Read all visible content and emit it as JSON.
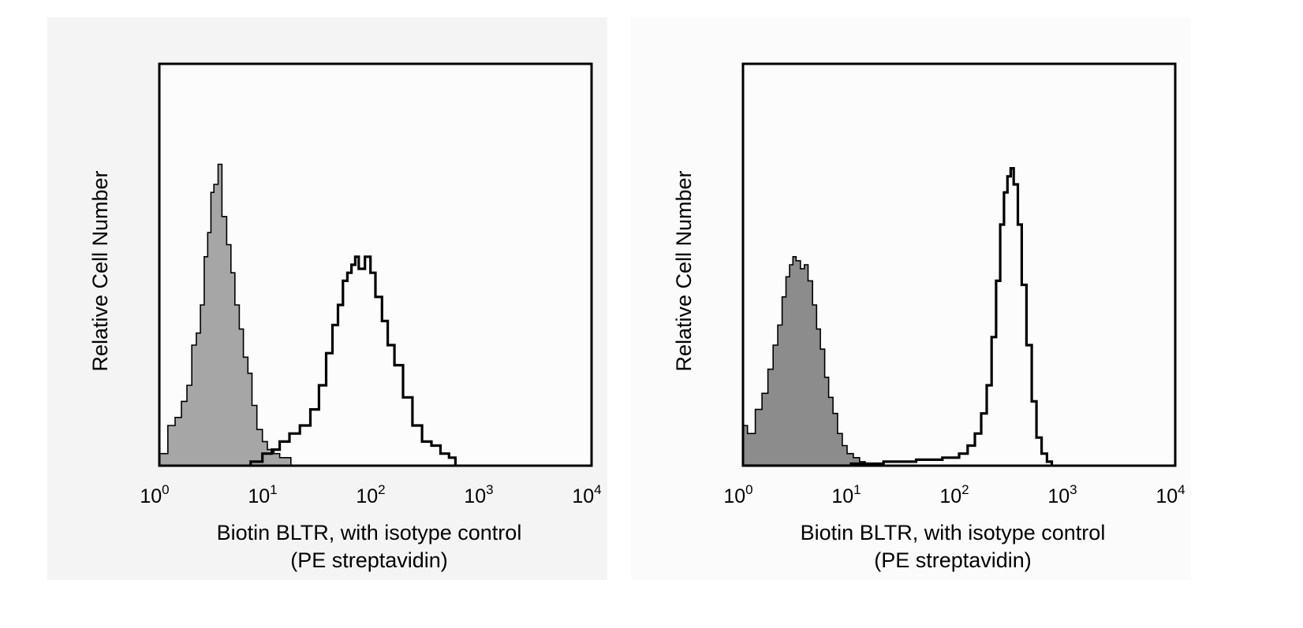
{
  "chart_data": [
    {
      "type": "area",
      "title": "",
      "xlabel": "Biotin BLTR, with isotype control",
      "xlabel_line2": "(PE streptavidin)",
      "ylabel": "Relative Cell Number",
      "x_scale": "log",
      "xlim": [
        1,
        10000
      ],
      "ylim": [
        0,
        1
      ],
      "x_ticks": [
        {
          "base": "10",
          "exp": "0"
        },
        {
          "base": "10",
          "exp": "1"
        },
        {
          "base": "10",
          "exp": "2"
        },
        {
          "base": "10",
          "exp": "3"
        },
        {
          "base": "10",
          "exp": "4"
        }
      ],
      "grid": false,
      "legend": "none",
      "series": [
        {
          "role": "isotype control",
          "style": "filled",
          "fill_color": "#a6a6a6",
          "x": [
            1.0,
            1.2,
            1.4,
            1.6,
            1.8,
            2.0,
            2.2,
            2.4,
            2.6,
            2.8,
            3.0,
            3.2,
            3.5,
            3.8,
            4.2,
            4.6,
            5.0,
            5.5,
            6.0,
            6.6,
            7.2,
            8.0,
            9.0,
            10.0,
            11.5,
            13.0,
            15.0,
            16.5
          ],
          "y": [
            0.03,
            0.1,
            0.12,
            0.16,
            0.2,
            0.3,
            0.33,
            0.4,
            0.52,
            0.58,
            0.68,
            0.7,
            0.75,
            0.62,
            0.55,
            0.48,
            0.4,
            0.34,
            0.27,
            0.23,
            0.15,
            0.09,
            0.06,
            0.04,
            0.03,
            0.02,
            0.02,
            0.0
          ]
        },
        {
          "role": "Biotin BLTR",
          "style": "outline",
          "line_color": "#000000",
          "x": [
            7.0,
            9.0,
            11.0,
            13.0,
            16.0,
            20.0,
            25.0,
            30.0,
            35.0,
            40.0,
            45.0,
            50.0,
            55.0,
            60.0,
            65.0,
            70.0,
            80.0,
            90.0,
            100.0,
            115.0,
            130.0,
            150.0,
            180.0,
            220.0,
            270.0,
            330.0,
            400.0,
            480.0,
            550.0
          ],
          "y": [
            0.01,
            0.03,
            0.04,
            0.06,
            0.08,
            0.1,
            0.14,
            0.2,
            0.28,
            0.35,
            0.4,
            0.46,
            0.48,
            0.5,
            0.52,
            0.49,
            0.52,
            0.48,
            0.42,
            0.36,
            0.3,
            0.25,
            0.17,
            0.1,
            0.06,
            0.05,
            0.03,
            0.02,
            0.0
          ]
        }
      ]
    },
    {
      "type": "area",
      "title": "",
      "xlabel": "Biotin BLTR, with isotype control",
      "xlabel_line2": "(PE streptavidin)",
      "ylabel": "Relative Cell Number",
      "x_scale": "log",
      "xlim": [
        1,
        10000
      ],
      "ylim": [
        0,
        1
      ],
      "x_ticks": [
        {
          "base": "10",
          "exp": "0"
        },
        {
          "base": "10",
          "exp": "1"
        },
        {
          "base": "10",
          "exp": "2"
        },
        {
          "base": "10",
          "exp": "3"
        },
        {
          "base": "10",
          "exp": "4"
        }
      ],
      "grid": false,
      "legend": "none",
      "series": [
        {
          "role": "isotype control",
          "style": "filled",
          "fill_color": "#8c8c8c",
          "x": [
            1.0,
            1.1,
            1.3,
            1.5,
            1.7,
            1.9,
            2.1,
            2.3,
            2.5,
            2.7,
            2.9,
            3.1,
            3.4,
            3.7,
            4.0,
            4.4,
            4.8,
            5.2,
            5.7,
            6.2,
            6.8,
            7.5,
            8.3,
            9.2,
            10.5,
            12.0,
            13.5
          ],
          "y": [
            0.1,
            0.08,
            0.14,
            0.18,
            0.24,
            0.3,
            0.35,
            0.42,
            0.47,
            0.5,
            0.52,
            0.51,
            0.49,
            0.5,
            0.46,
            0.4,
            0.34,
            0.29,
            0.22,
            0.17,
            0.13,
            0.08,
            0.05,
            0.03,
            0.02,
            0.01,
            0.0
          ]
        },
        {
          "role": "Biotin BLTR",
          "style": "outline",
          "line_color": "#000000",
          "x": [
            1.0,
            10.0,
            20.0,
            40.0,
            70.0,
            100.0,
            120.0,
            140.0,
            160.0,
            180.0,
            200.0,
            220.0,
            240.0,
            260.0,
            280.0,
            300.0,
            320.0,
            350.0,
            380.0,
            420.0,
            470.0,
            520.0,
            580.0,
            650.0,
            720.0
          ],
          "y": [
            0.0,
            0.005,
            0.01,
            0.015,
            0.02,
            0.03,
            0.05,
            0.08,
            0.13,
            0.2,
            0.32,
            0.46,
            0.6,
            0.68,
            0.72,
            0.74,
            0.7,
            0.6,
            0.45,
            0.3,
            0.16,
            0.07,
            0.03,
            0.01,
            0.0
          ]
        }
      ]
    }
  ]
}
